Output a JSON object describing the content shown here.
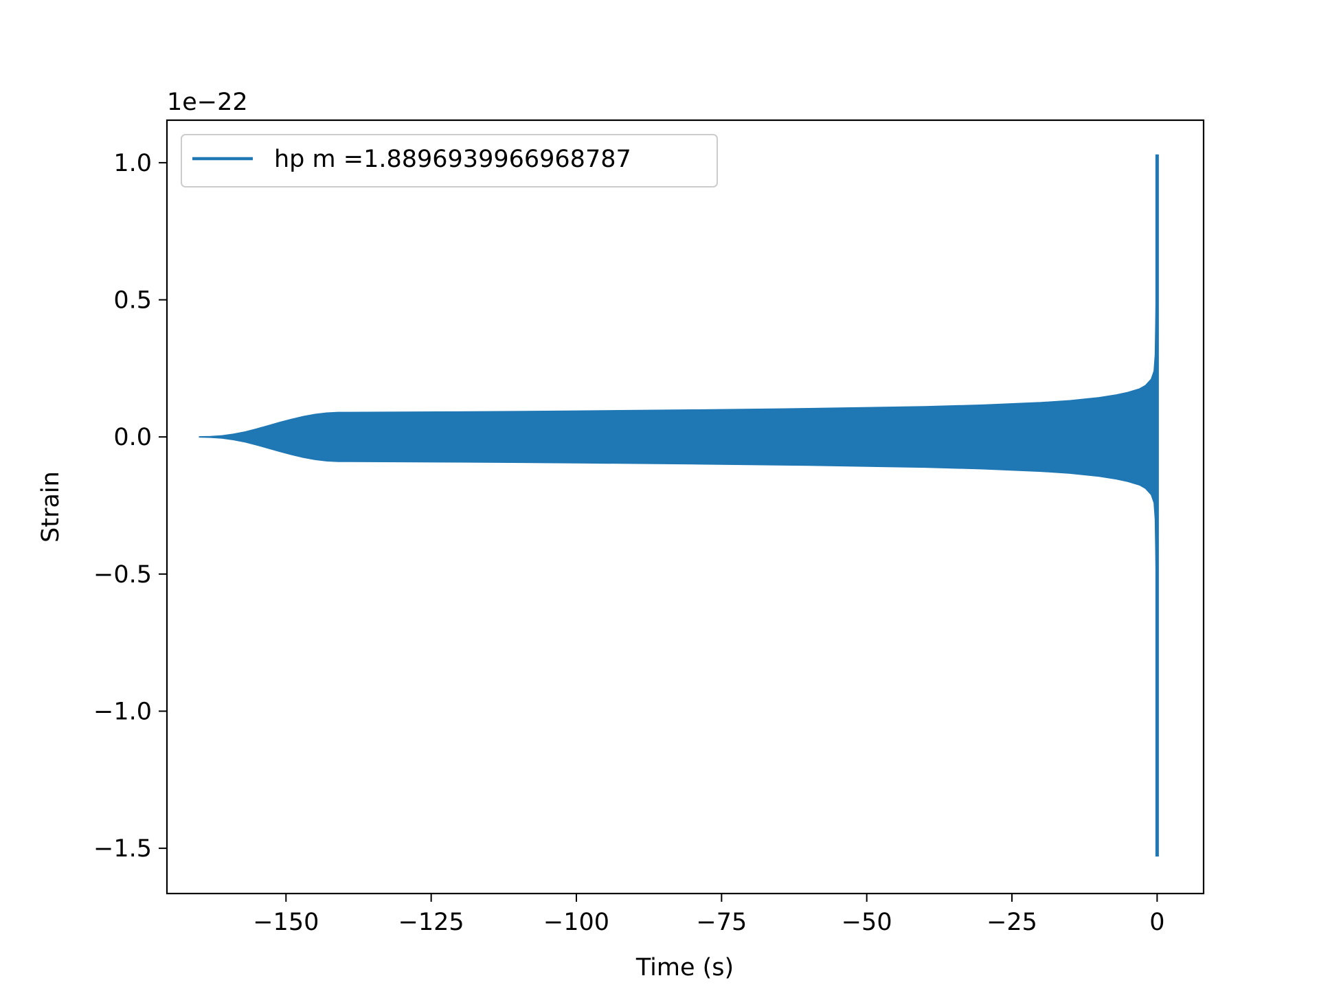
{
  "chart_data": {
    "type": "line",
    "title": "",
    "xlabel": "Time (s)",
    "ylabel": "Strain",
    "y_offset_text": "1e−22",
    "xlim": [
      -170.5,
      8.0
    ],
    "ylim": [
      -1.665,
      1.155
    ],
    "xticks": [
      -150,
      -125,
      -100,
      -75,
      -50,
      -25,
      0
    ],
    "xtick_labels": [
      "−150",
      "−125",
      "−100",
      "−75",
      "−50",
      "−25",
      "0"
    ],
    "yticks": [
      -1.5,
      -1.0,
      -0.5,
      0.0,
      0.5,
      1.0
    ],
    "ytick_labels": [
      "−1.5",
      "−1.0",
      "−0.5",
      "0.0",
      "0.5",
      "1.0"
    ],
    "grid": false,
    "legend_position": "upper-left",
    "series": [
      {
        "name": "hp m =1.8896939966968787",
        "color": "#1f77b4",
        "envelope": {
          "t": [
            -165,
            -163,
            -161,
            -159,
            -157,
            -155,
            -153,
            -151,
            -149,
            -147,
            -145,
            -143,
            -141,
            -140,
            -130,
            -120,
            -100,
            -80,
            -60,
            -40,
            -30,
            -20,
            -15,
            -10,
            -7,
            -5,
            -3,
            -2,
            -1,
            -0.5,
            -0.3,
            -0.15,
            -0.05,
            0
          ],
          "amplitude": [
            0.0,
            0.001,
            0.004,
            0.01,
            0.018,
            0.029,
            0.041,
            0.053,
            0.064,
            0.074,
            0.082,
            0.087,
            0.089,
            0.089,
            0.09,
            0.091,
            0.094,
            0.098,
            0.103,
            0.11,
            0.116,
            0.125,
            0.132,
            0.143,
            0.153,
            0.162,
            0.175,
            0.187,
            0.21,
            0.24,
            0.3,
            0.5,
            0.85,
            1.03
          ]
        },
        "extreme_max": 1.03,
        "extreme_min": -1.53
      }
    ]
  }
}
